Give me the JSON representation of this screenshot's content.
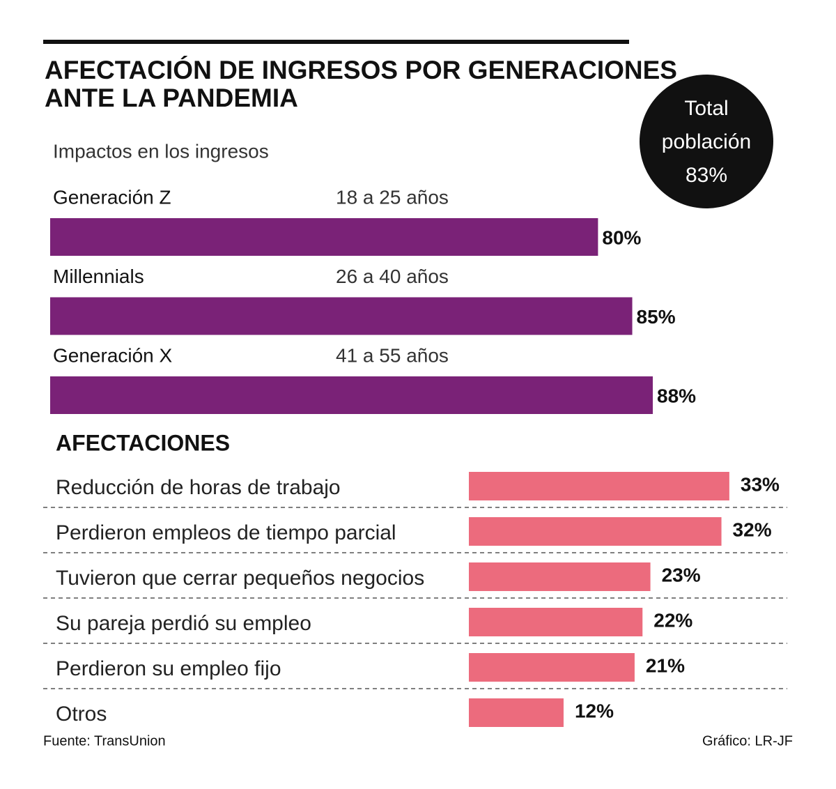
{
  "title": "AFECTACIÓN DE INGRESOS POR GENERACIONES ANTE LA PANDEMIA",
  "total": {
    "lines": [
      "Total",
      "población",
      "83%"
    ]
  },
  "chart_data": [
    {
      "type": "bar",
      "subtitle": "Impactos en los ingresos",
      "categories": [
        "Generación Z",
        "Millennials",
        "Generación X"
      ],
      "category_notes": [
        "18 a 25 años",
        "26 a 40 años",
        "41 a 55 años"
      ],
      "values": [
        80,
        85,
        88
      ],
      "value_labels": [
        "80%",
        "85%",
        "88%"
      ],
      "color": "#7a2277"
    },
    {
      "type": "bar",
      "title": "AFECTACIONES",
      "categories": [
        "Reducción de horas de trabajo",
        "Perdieron empleos de tiempo parcial",
        "Tuvieron que cerrar pequeños negocios",
        "Su pareja perdió su empleo",
        "Perdieron su empleo fijo",
        "Otros"
      ],
      "values": [
        33,
        32,
        23,
        22,
        21,
        12
      ],
      "value_labels": [
        "33%",
        "32%",
        "23%",
        "22%",
        "21%",
        "12%"
      ],
      "color": "#ec6b7d"
    }
  ],
  "source": "Fuente: TransUnion",
  "credit": "Gráfico: LR-JF"
}
